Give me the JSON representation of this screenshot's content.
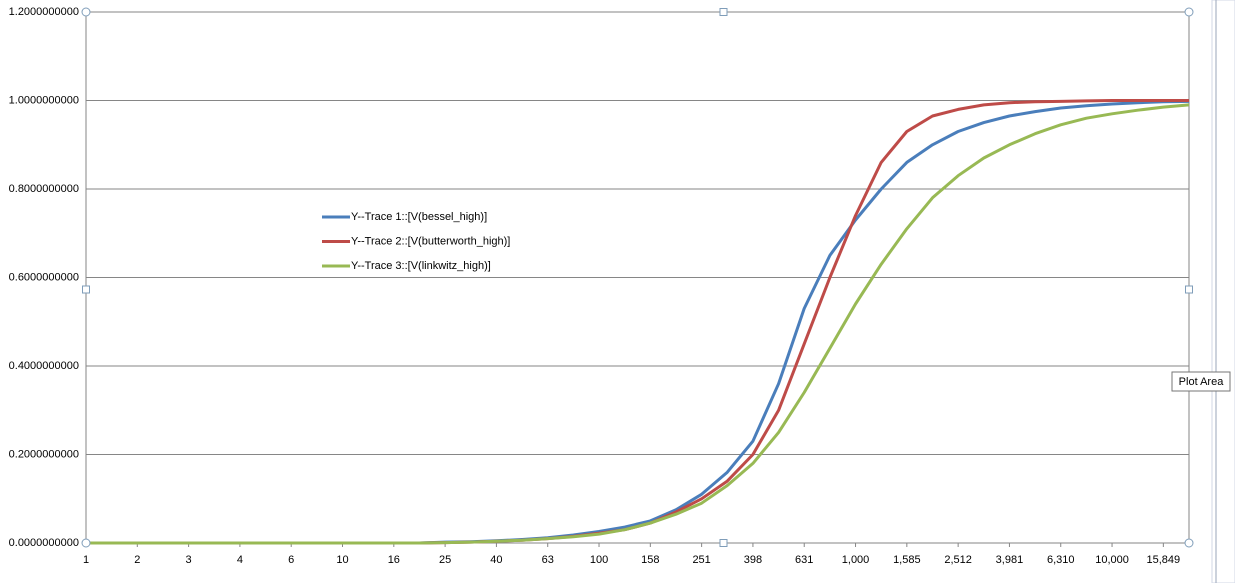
{
  "chart_data": {
    "type": "line",
    "categories": [
      "1",
      null,
      "2",
      null,
      "3",
      null,
      "4",
      null,
      "6",
      null,
      "10",
      null,
      "16",
      null,
      "25",
      null,
      "40",
      null,
      "63",
      null,
      "100",
      null,
      "158",
      null,
      "251",
      null,
      "398",
      null,
      "631",
      null,
      "1,000",
      null,
      "1,585",
      null,
      "2,512",
      null,
      "3,981",
      null,
      "6,310",
      null,
      "10,000",
      null,
      "15,849",
      null
    ],
    "series": [
      {
        "name": "Y--Trace 1::[V(bessel_high)]",
        "color": "#4a7ebb",
        "values": [
          0,
          0,
          0,
          0,
          0,
          0,
          0,
          0,
          0,
          0,
          0,
          0,
          0,
          0,
          0.002,
          0.003,
          0.005,
          0.008,
          0.012,
          0.018,
          0.026,
          0.036,
          0.05,
          0.075,
          0.11,
          0.16,
          0.23,
          0.36,
          0.53,
          0.65,
          0.73,
          0.8,
          0.86,
          0.9,
          0.93,
          0.95,
          0.965,
          0.975,
          0.983,
          0.988,
          0.992,
          0.995,
          0.997,
          0.998
        ]
      },
      {
        "name": "Y--Trace 2::[V(butterworth_high)]",
        "color": "#be4b48",
        "values": [
          0,
          0,
          0,
          0,
          0,
          0,
          0,
          0,
          0,
          0,
          0,
          0,
          0,
          0,
          0.001,
          0.002,
          0.004,
          0.006,
          0.01,
          0.015,
          0.022,
          0.03,
          0.045,
          0.07,
          0.1,
          0.14,
          0.2,
          0.3,
          0.45,
          0.6,
          0.74,
          0.86,
          0.93,
          0.965,
          0.98,
          0.99,
          0.995,
          0.997,
          0.998,
          0.999,
          1,
          1,
          1,
          1
        ]
      },
      {
        "name": "Y--Trace 3::[V(linkwitz_high)]",
        "color": "#98b954",
        "values": [
          0,
          0,
          0,
          0,
          0,
          0,
          0,
          0,
          0,
          0,
          0,
          0,
          0,
          0,
          0.001,
          0.002,
          0.004,
          0.006,
          0.01,
          0.014,
          0.02,
          0.03,
          0.045,
          0.065,
          0.09,
          0.13,
          0.18,
          0.25,
          0.34,
          0.44,
          0.54,
          0.63,
          0.71,
          0.78,
          0.83,
          0.87,
          0.9,
          0.925,
          0.945,
          0.96,
          0.97,
          0.978,
          0.985,
          0.99
        ]
      }
    ],
    "ylim": [
      0,
      1.2
    ],
    "yticks": [
      {
        "value": 0,
        "label": "0.0000000000"
      },
      {
        "value": 0.2,
        "label": "0.2000000000"
      },
      {
        "value": 0.4,
        "label": "0.4000000000"
      },
      {
        "value": 0.6,
        "label": "0.6000000000"
      },
      {
        "value": 0.8,
        "label": "0.8000000000"
      },
      {
        "value": 1,
        "label": "1.0000000000"
      },
      {
        "value": 1.2,
        "label": "1.2000000000"
      }
    ],
    "grid": true,
    "legend": "left"
  },
  "tooltip": "Plot Area"
}
